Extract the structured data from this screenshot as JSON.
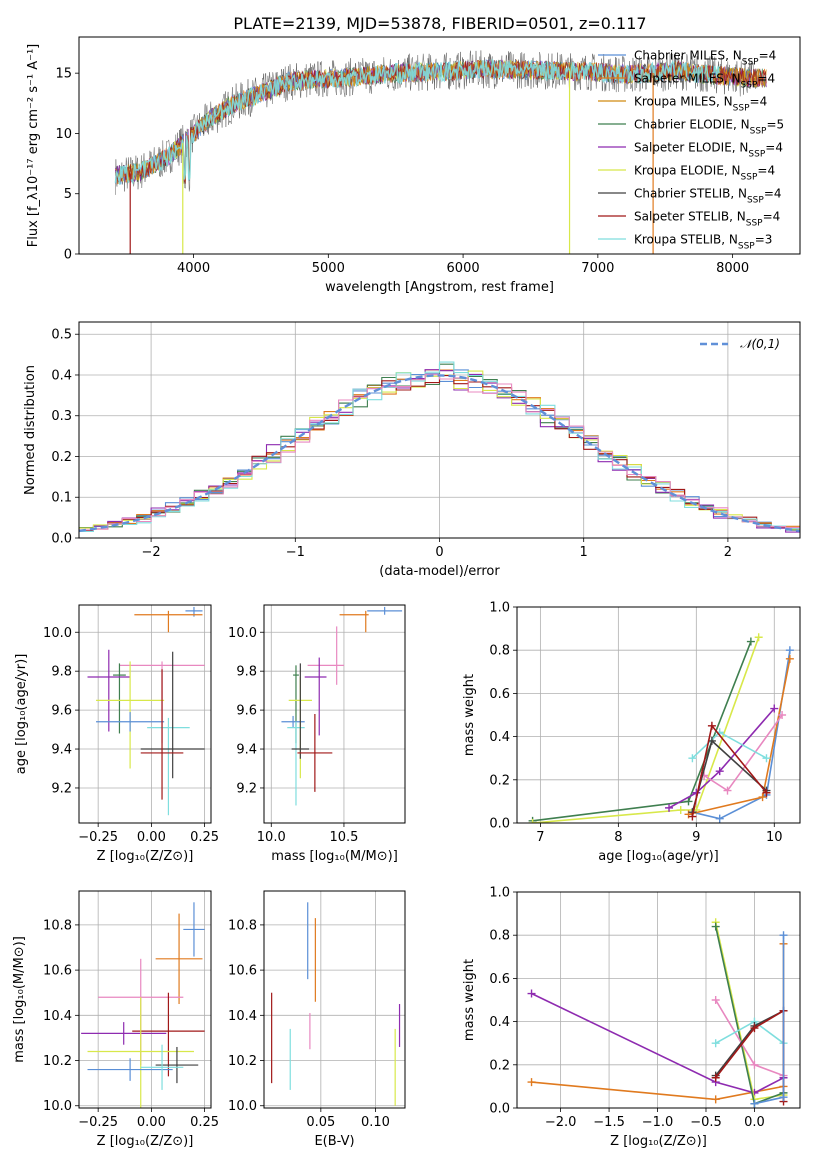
{
  "title": "PLATE=2139, MJD=53878, FIBERID=0501, z=0.117",
  "colors": {
    "Chabrier MILES": "#5b8fd6",
    "Salpeter MILES": "#e07a1f",
    "Kroupa MILES": "#d08a10",
    "Chabrier ELODIE": "#3f7f4f",
    "Salpeter ELODIE": "#8e2bb0",
    "Kroupa ELODIE": "#d8e84a",
    "Chabrier STELIB": "#404040",
    "Salpeter STELIB": "#a01818",
    "Kroupa STELIB": "#7fdede",
    "pink": "#e888c0",
    "gauss": "#6090d8"
  },
  "chart_data": [
    {
      "id": "spectrum",
      "type": "line",
      "title": "PLATE=2139, MJD=53878, FIBERID=0501, z=0.117",
      "xlabel": "wavelength [Angstrom, rest frame]",
      "ylabel": "Flux [f_λ10⁻¹⁷ erg cm⁻² s⁻¹ A⁻¹]",
      "xlim": [
        3150,
        8500
      ],
      "ylim": [
        0,
        18
      ],
      "xticks": [
        4000,
        5000,
        6000,
        7000,
        8000
      ],
      "yticks": [
        0,
        5,
        10,
        15
      ],
      "legend_position": "upper right",
      "legend": [
        "Chabrier MILES, N_SSP=4",
        "Salpeter MILES, N_SSP=4",
        "Kroupa MILES, N_SSP=4",
        "Chabrier ELODIE, N_SSP=5",
        "Salpeter ELODIE, N_SSP=4",
        "Kroupa ELODIE, N_SSP=4",
        "Chabrier STELIB, N_SSP=4",
        "Salpeter STELIB, N_SSP=4",
        "Kroupa STELIB, N_SSP=3"
      ],
      "continuum": {
        "x": [
          3420,
          3600,
          3800,
          3950,
          4100,
          4300,
          4500,
          4700,
          4900,
          5100,
          5300,
          5500,
          5800,
          6100,
          6400,
          6700,
          7000,
          7200,
          7400,
          7600,
          7800,
          8000,
          8200
        ],
        "y": [
          6.5,
          6.8,
          8.0,
          9.5,
          11.0,
          12.5,
          13.3,
          14.3,
          14.5,
          14.6,
          14.8,
          15.0,
          15.1,
          15.3,
          15.3,
          15.2,
          15.1,
          14.9,
          15.0,
          15.2,
          14.9,
          14.7,
          14.6
        ]
      },
      "dropouts": [
        {
          "model": "Salpeter STELIB",
          "x": 3530
        },
        {
          "model": "Kroupa ELODIE",
          "x": 3920
        },
        {
          "model": "Kroupa ELODIE",
          "x": 6790
        },
        {
          "model": "Salpeter MILES",
          "x": 7410
        }
      ]
    },
    {
      "id": "residual_hist",
      "type": "line",
      "xlabel": "(data-model)/error",
      "ylabel": "Normed distribution",
      "xlim": [
        -2.5,
        2.5
      ],
      "ylim": [
        0,
        0.53
      ],
      "xticks": [
        -2,
        -1,
        0,
        1,
        2
      ],
      "yticks": [
        0.0,
        0.1,
        0.2,
        0.3,
        0.4,
        0.5
      ],
      "legend": [
        "𝒩(0,1)"
      ],
      "bin_width": 0.1,
      "series": [
        {
          "model": "Chabrier MILES",
          "offset": 0.0,
          "scale": 1.02
        },
        {
          "model": "Salpeter MILES",
          "offset": 0.02,
          "scale": 1.03
        },
        {
          "model": "Chabrier ELODIE",
          "offset": -0.01,
          "scale": 1.0
        },
        {
          "model": "Salpeter ELODIE",
          "offset": -0.02,
          "scale": 1.01
        },
        {
          "model": "Kroupa ELODIE",
          "offset": 0.01,
          "scale": 1.01
        },
        {
          "model": "Salpeter STELIB",
          "offset": 0.0,
          "scale": 1.03
        },
        {
          "model": "Kroupa STELIB",
          "offset": 0.01,
          "scale": 0.99
        },
        {
          "model": "pink",
          "offset": 0.02,
          "scale": 1.02
        }
      ]
    },
    {
      "id": "age_vs_Z",
      "type": "scatter",
      "xlabel": "Z [log₁₀(Z/Z⊙)]",
      "ylabel": "age  [log₁₀(age/yr)]",
      "xlim": [
        -0.34,
        0.28
      ],
      "ylim": [
        9.02,
        10.14
      ],
      "xticks": [
        -0.25,
        0.0,
        0.25
      ],
      "yticks": [
        9.2,
        9.4,
        9.6,
        9.8,
        10.0
      ],
      "points": [
        {
          "c": "Chabrier MILES",
          "x": 0.2,
          "y": 10.11,
          "xe": [
            0.04,
            0.04
          ],
          "ye": [
            0.03,
            0.02
          ]
        },
        {
          "c": "Salpeter MILES",
          "x": 0.08,
          "y": 10.09,
          "xe": [
            0.16,
            0.16
          ],
          "ye": [
            0.09,
            0.02
          ]
        },
        {
          "c": "pink",
          "x": 0.05,
          "y": 9.83,
          "xe": [
            0.2,
            0.2
          ],
          "ye": [
            0.4,
            0.02
          ]
        },
        {
          "c": "Chabrier ELODIE",
          "x": -0.15,
          "y": 9.78,
          "xe": [
            0.03,
            0.03
          ],
          "ye": [
            0.3,
            0.06
          ]
        },
        {
          "c": "Salpeter ELODIE",
          "x": -0.2,
          "y": 9.77,
          "xe": [
            0.1,
            0.1
          ],
          "ye": [
            0.28,
            0.14
          ]
        },
        {
          "c": "Kroupa ELODIE",
          "x": -0.1,
          "y": 9.65,
          "xe": [
            0.16,
            0.16
          ],
          "ye": [
            0.35,
            0.2
          ]
        },
        {
          "c": "Chabrier MILES",
          "x": -0.1,
          "y": 9.54,
          "xe": [
            0.16,
            0.16
          ],
          "ye": [
            0.05,
            0.05
          ]
        },
        {
          "c": "Kroupa STELIB",
          "x": 0.08,
          "y": 9.51,
          "xe": [
            0.1,
            0.1
          ],
          "ye": [
            0.45,
            0.05
          ]
        },
        {
          "c": "Chabrier STELIB",
          "x": 0.1,
          "y": 9.4,
          "xe": [
            0.15,
            0.15
          ],
          "ye": [
            0.15,
            0.5
          ]
        },
        {
          "c": "Salpeter STELIB",
          "x": 0.05,
          "y": 9.38,
          "xe": [
            0.1,
            0.1
          ],
          "ye": [
            0.24,
            0.43
          ]
        }
      ]
    },
    {
      "id": "age_vs_mass",
      "type": "scatter",
      "xlabel": "mass [log₁₀(M/M⊙)]",
      "ylabel": "",
      "xlim": [
        9.95,
        10.92
      ],
      "ylim": [
        9.02,
        10.14
      ],
      "xticks": [
        10.0,
        10.5
      ],
      "yticks": [
        9.2,
        9.4,
        9.6,
        9.8,
        10.0
      ],
      "points": [
        {
          "c": "Chabrier MILES",
          "x": 10.78,
          "y": 10.11,
          "xe": [
            0.12,
            0.12
          ],
          "ye": [
            0.02,
            0.02
          ]
        },
        {
          "c": "Salpeter MILES",
          "x": 10.65,
          "y": 10.09,
          "xe": [
            0.18,
            0.02
          ],
          "ye": [
            0.09,
            0.02
          ]
        },
        {
          "c": "pink",
          "x": 10.45,
          "y": 9.83,
          "xe": [
            0.2,
            0.05
          ],
          "ye": [
            0.1,
            0.2
          ]
        },
        {
          "c": "Chabrier ELODIE",
          "x": 10.17,
          "y": 9.78,
          "xe": [
            0.02,
            0.02
          ],
          "ye": [
            0.35,
            0.05
          ]
        },
        {
          "c": "Salpeter ELODIE",
          "x": 10.33,
          "y": 9.77,
          "xe": [
            0.1,
            0.05
          ],
          "ye": [
            0.3,
            0.1
          ]
        },
        {
          "c": "Kroupa ELODIE",
          "x": 10.2,
          "y": 9.65,
          "xe": [
            0.08,
            0.08
          ],
          "ye": [
            0.4,
            0.12
          ]
        },
        {
          "c": "Chabrier MILES",
          "x": 10.15,
          "y": 9.54,
          "xe": [
            0.08,
            0.08
          ],
          "ye": [
            0.03,
            0.03
          ]
        },
        {
          "c": "Kroupa STELIB",
          "x": 10.17,
          "y": 9.51,
          "xe": [
            0.06,
            0.06
          ],
          "ye": [
            0.4,
            0.03
          ]
        },
        {
          "c": "Chabrier STELIB",
          "x": 10.2,
          "y": 9.4,
          "xe": [
            0.06,
            0.06
          ],
          "ye": [
            0.05,
            0.44
          ]
        },
        {
          "c": "Salpeter STELIB",
          "x": 10.3,
          "y": 9.38,
          "xe": [
            0.12,
            0.12
          ],
          "ye": [
            0.2,
            0.2
          ]
        }
      ]
    },
    {
      "id": "weight_vs_age",
      "type": "line",
      "xlabel": "age  [log₁₀(age/yr)]",
      "ylabel": "mass weight",
      "xlim": [
        6.7,
        10.33
      ],
      "ylim": [
        0.0,
        1.0
      ],
      "xticks": [
        7,
        8,
        9,
        10
      ],
      "yticks": [
        0.0,
        0.2,
        0.4,
        0.6,
        0.8,
        1.0
      ],
      "series": [
        {
          "c": "Chabrier ELODIE",
          "x": [
            6.9,
            8.9,
            9.7
          ],
          "y": [
            0.01,
            0.1,
            0.84
          ]
        },
        {
          "c": "Kroupa ELODIE",
          "x": [
            6.9,
            8.8,
            9.0,
            9.8
          ],
          "y": [
            0.0,
            0.06,
            0.06,
            0.86
          ]
        },
        {
          "c": "Chabrier MILES",
          "x": [
            8.95,
            9.3,
            9.9,
            10.2
          ],
          "y": [
            0.05,
            0.02,
            0.13,
            0.8
          ]
        },
        {
          "c": "Salpeter MILES",
          "x": [
            8.9,
            9.85,
            10.2
          ],
          "y": [
            0.04,
            0.12,
            0.76
          ]
        },
        {
          "c": "Salpeter ELODIE",
          "x": [
            8.65,
            9.0,
            9.3,
            10.0
          ],
          "y": [
            0.07,
            0.14,
            0.24,
            0.53
          ]
        },
        {
          "c": "pink",
          "x": [
            9.1,
            9.4,
            10.1
          ],
          "y": [
            0.22,
            0.15,
            0.5
          ]
        },
        {
          "c": "Kroupa STELIB",
          "x": [
            8.95,
            9.3,
            9.9
          ],
          "y": [
            0.3,
            0.42,
            0.3
          ]
        },
        {
          "c": "Chabrier STELIB",
          "x": [
            8.95,
            9.2,
            9.9
          ],
          "y": [
            0.05,
            0.38,
            0.15
          ]
        },
        {
          "c": "Salpeter STELIB",
          "x": [
            8.95,
            9.2,
            9.9
          ],
          "y": [
            0.03,
            0.45,
            0.14
          ]
        }
      ]
    },
    {
      "id": "mass_vs_Z",
      "type": "scatter",
      "xlabel": "Z [log₁₀(Z/Z⊙)]",
      "ylabel": "mass [log₁₀(M/M⊙)]",
      "xlim": [
        -0.34,
        0.28
      ],
      "ylim": [
        9.99,
        10.95
      ],
      "xticks": [
        -0.25,
        0.0,
        0.25
      ],
      "yticks": [
        10.0,
        10.2,
        10.4,
        10.6,
        10.8
      ],
      "points": [
        {
          "c": "Chabrier MILES",
          "x": 0.2,
          "y": 10.78,
          "xe": [
            0.05,
            0.05
          ],
          "ye": [
            0.12,
            0.12
          ]
        },
        {
          "c": "Salpeter MILES",
          "x": 0.13,
          "y": 10.65,
          "xe": [
            0.11,
            0.11
          ],
          "ye": [
            0.2,
            0.2
          ]
        },
        {
          "c": "pink",
          "x": -0.05,
          "y": 10.48,
          "xe": [
            0.2,
            0.2
          ],
          "ye": [
            0.3,
            0.17
          ]
        },
        {
          "c": "Salpeter STELIB",
          "x": 0.08,
          "y": 10.33,
          "xe": [
            0.17,
            0.17
          ],
          "ye": [
            0.2,
            0.17
          ]
        },
        {
          "c": "Salpeter ELODIE",
          "x": -0.13,
          "y": 10.32,
          "xe": [
            0.2,
            0.2
          ],
          "ye": [
            0.05,
            0.05
          ]
        },
        {
          "c": "Kroupa ELODIE",
          "x": -0.05,
          "y": 10.24,
          "xe": [
            0.25,
            0.25
          ],
          "ye": [
            0.25,
            0.24
          ]
        },
        {
          "c": "Chabrier STELIB",
          "x": 0.12,
          "y": 10.18,
          "xe": [
            0.1,
            0.1
          ],
          "ye": [
            0.08,
            0.08
          ]
        },
        {
          "c": "Chabrier MILES",
          "x": -0.1,
          "y": 10.16,
          "xe": [
            0.2,
            0.2
          ],
          "ye": [
            0.05,
            0.05
          ]
        },
        {
          "c": "Kroupa STELIB",
          "x": 0.05,
          "y": 10.17,
          "xe": [
            0.1,
            0.1
          ],
          "ye": [
            0.1,
            0.1
          ]
        }
      ]
    },
    {
      "id": "mass_vs_ebv",
      "type": "scatter",
      "xlabel": "E(B-V)",
      "ylabel": "",
      "xlim": [
        -0.002,
        0.127
      ],
      "ylim": [
        9.99,
        10.95
      ],
      "xticks": [
        0.05,
        0.1
      ],
      "yticks": [
        10.0,
        10.2,
        10.4,
        10.6,
        10.8
      ],
      "points": [
        {
          "c": "Salpeter STELIB",
          "x": 0.005,
          "y": 10.3,
          "ye": [
            0.2,
            0.2
          ]
        },
        {
          "c": "Kroupa STELIB",
          "x": 0.022,
          "y": 10.2,
          "ye": [
            0.13,
            0.14
          ]
        },
        {
          "c": "Chabrier MILES",
          "x": 0.038,
          "y": 10.73,
          "ye": [
            0.17,
            0.17
          ]
        },
        {
          "c": "pink",
          "x": 0.04,
          "y": 10.33,
          "ye": [
            0.08,
            0.08
          ]
        },
        {
          "c": "Salpeter MILES",
          "x": 0.045,
          "y": 10.64,
          "ye": [
            0.18,
            0.19
          ]
        },
        {
          "c": "Kroupa ELODIE",
          "x": 0.118,
          "y": 10.17,
          "ye": [
            0.17,
            0.17
          ]
        },
        {
          "c": "Salpeter ELODIE",
          "x": 0.122,
          "y": 10.35,
          "ye": [
            0.09,
            0.1
          ]
        }
      ]
    },
    {
      "id": "weight_vs_Z",
      "type": "line",
      "xlabel": "Z [log₁₀(Z/Z⊙)]",
      "ylabel": "mass weight",
      "xlim": [
        -2.45,
        0.47
      ],
      "ylim": [
        0.0,
        1.0
      ],
      "xticks": [
        -2.0,
        -1.5,
        -1.0,
        -0.5,
        0.0
      ],
      "xticklabels": [
        "−2.0",
        "−1.5",
        "−1.0",
        "−0.5",
        "0.0"
      ],
      "yticks": [
        0.0,
        0.2,
        0.4,
        0.6,
        0.8,
        1.0
      ],
      "series": [
        {
          "c": "Salpeter MILES",
          "x": [
            -2.3,
            -0.4,
            0.3,
            0.3
          ],
          "y": [
            0.12,
            0.04,
            0.1,
            0.76
          ]
        },
        {
          "c": "Salpeter ELODIE",
          "x": [
            -2.3,
            -0.4,
            0.0,
            0.3
          ],
          "y": [
            0.53,
            0.12,
            0.07,
            0.14
          ]
        },
        {
          "c": "Kroupa ELODIE",
          "x": [
            -0.4,
            0.0,
            0.3
          ],
          "y": [
            0.86,
            0.04,
            0.06
          ]
        },
        {
          "c": "Chabrier ELODIE",
          "x": [
            -0.4,
            0.0,
            0.3
          ],
          "y": [
            0.84,
            0.02,
            0.07
          ]
        },
        {
          "c": "pink",
          "x": [
            -0.4,
            0.0,
            0.3
          ],
          "y": [
            0.5,
            0.2,
            0.15
          ]
        },
        {
          "c": "Kroupa STELIB",
          "x": [
            -0.4,
            0.0,
            0.3
          ],
          "y": [
            0.3,
            0.4,
            0.3
          ]
        },
        {
          "c": "Chabrier STELIB",
          "x": [
            -0.4,
            0.0,
            0.3
          ],
          "y": [
            0.15,
            0.38,
            0.45
          ]
        },
        {
          "c": "Salpeter STELIB",
          "x": [
            -0.4,
            0.0,
            0.3,
            0.3
          ],
          "y": [
            0.14,
            0.37,
            0.45,
            0.03
          ]
        },
        {
          "c": "Chabrier MILES",
          "x": [
            0.0,
            0.3,
            0.3
          ],
          "y": [
            0.02,
            0.05,
            0.8
          ]
        }
      ]
    }
  ]
}
